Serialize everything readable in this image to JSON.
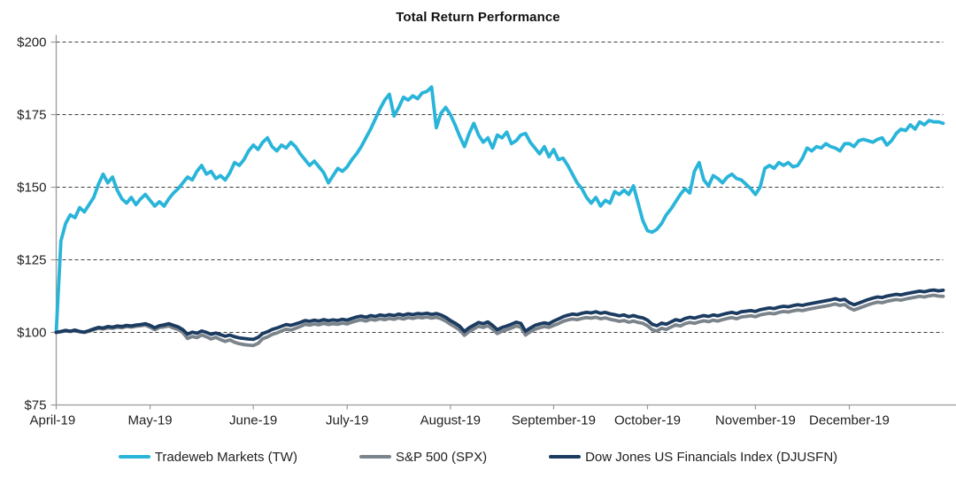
{
  "page": {
    "background": "#ffffff"
  },
  "chart_data": {
    "type": "line",
    "title": "Total Return Performance",
    "xlabel": "",
    "ylabel": "",
    "x_tick_labels": [
      "April-19",
      "May-19",
      "June-19",
      "July-19",
      "August-19",
      "September-19",
      "October-19",
      "November-19",
      "December-19"
    ],
    "x_tick_day_offsets": [
      0,
      20,
      42,
      62,
      84,
      106,
      126,
      149,
      169
    ],
    "y_axis": {
      "min": 75,
      "max": 200,
      "tick_values": [
        200,
        175,
        150,
        125,
        100,
        75
      ],
      "tick_labels": [
        "$200",
        "$175",
        "$150",
        "$125",
        "$100",
        "$75"
      ],
      "gridlines": "dashed-horizontal"
    },
    "legend_position": "bottom",
    "colors": {
      "grid": "#3f3f3f",
      "axis": "#999999",
      "text": "#1f1f1f"
    },
    "series": [
      {
        "key": "tw",
        "name": "Tradeweb Markets (TW)",
        "color": "#29B4D9",
        "values": [
          100,
          131.5,
          137.5,
          140.5,
          139.5,
          143,
          141.5,
          144,
          146.5,
          151,
          154.5,
          151.5,
          153.5,
          149,
          146,
          144.5,
          146.5,
          144,
          146,
          147.5,
          145.5,
          143.5,
          145,
          143.5,
          146,
          148,
          149.5,
          151.5,
          153.5,
          152.5,
          155.5,
          157.5,
          154.5,
          155.5,
          153,
          154,
          152.5,
          155,
          158.5,
          157.5,
          159.5,
          162.5,
          164.5,
          163,
          165.5,
          167,
          164,
          162.5,
          164.5,
          163.5,
          165.5,
          164,
          161.5,
          159.5,
          157.5,
          159,
          157,
          155,
          151.5,
          154,
          156.5,
          155.5,
          157,
          159.5,
          161.5,
          164,
          167,
          170,
          173.5,
          177,
          180,
          182,
          174.5,
          177.5,
          181,
          180,
          181.5,
          180.5,
          182.5,
          183,
          184.5,
          170.5,
          175.5,
          177.5,
          175,
          171.5,
          167.5,
          164,
          168.5,
          172,
          168,
          165.5,
          167,
          163.5,
          168,
          167,
          169,
          165,
          166,
          168,
          168.5,
          165.5,
          163.5,
          161.5,
          164,
          160.5,
          163,
          159.5,
          160,
          157.5,
          154.5,
          151.5,
          149.5,
          146.5,
          144.5,
          146.5,
          143.5,
          145.5,
          144.5,
          148.5,
          147.5,
          149,
          147.5,
          150.5,
          144.5,
          138.5,
          135,
          134.5,
          135.5,
          137.5,
          140.5,
          142.5,
          145,
          147.5,
          149.5,
          148,
          155.5,
          158.5,
          152.5,
          150.5,
          154,
          153,
          151.5,
          153.5,
          154.5,
          153,
          152.5,
          151,
          149.5,
          147.5,
          150,
          156.5,
          157.5,
          156.5,
          158.5,
          157.5,
          158.5,
          157,
          157.5,
          160,
          163.5,
          162.5,
          164,
          163.5,
          165,
          164,
          163.5,
          162.5,
          165,
          165,
          164,
          166,
          166.5,
          166,
          165.5,
          166.5,
          167,
          164.5,
          166,
          168.5,
          170,
          169.5,
          171.5,
          170,
          172.5,
          171.5,
          173,
          172.5,
          172.5,
          172
        ]
      },
      {
        "key": "spx",
        "name": "S&P 500 (SPX)",
        "color": "#7B838B",
        "values": [
          100,
          100.2,
          100.5,
          100.3,
          100.6,
          100.2,
          100,
          100.4,
          100.9,
          101.4,
          101.2,
          101.6,
          101.4,
          101.8,
          101.6,
          102,
          101.8,
          102.1,
          102.3,
          102.5,
          101.8,
          100.9,
          101.7,
          101.9,
          102.2,
          101.5,
          101,
          99.9,
          97.9,
          98.6,
          98.2,
          99.1,
          98.5,
          97.7,
          98.3,
          97.5,
          96.9,
          97.4,
          96.6,
          96.1,
          95.8,
          95.6,
          95.5,
          96.2,
          97.8,
          98.4,
          99.3,
          99.8,
          100.5,
          101.1,
          100.8,
          101.4,
          102,
          102.8,
          102.5,
          102.9,
          102.6,
          103.1,
          102.7,
          103,
          102.8,
          103.2,
          102.9,
          103.5,
          104,
          104.3,
          103.9,
          104.5,
          104.2,
          104.7,
          104.4,
          104.8,
          104.5,
          105,
          104.6,
          105.1,
          104.8,
          105.2,
          105,
          105.3,
          104.9,
          105.2,
          104.7,
          103.9,
          102.8,
          101.9,
          100.8,
          99,
          100.3,
          101.2,
          102.1,
          101.7,
          102.3,
          101.1,
          99.6,
          100.4,
          100.9,
          101.5,
          102.2,
          101.8,
          99.1,
          100.2,
          101.1,
          101.6,
          102,
          101.7,
          102.4,
          103,
          103.8,
          104.3,
          104.6,
          104.4,
          104.8,
          105.1,
          104.9,
          105.2,
          104.7,
          105,
          104.5,
          104.2,
          103.8,
          104.1,
          103.5,
          103.9,
          103.4,
          103.1,
          102.3,
          100.9,
          100.5,
          101.4,
          101,
          101.8,
          102.6,
          102.2,
          103,
          103.4,
          103.1,
          103.6,
          104,
          103.7,
          104.2,
          103.9,
          104.4,
          104.8,
          105.1,
          104.7,
          105.3,
          105.5,
          105.7,
          105.4,
          106,
          106.3,
          106.6,
          106.4,
          106.9,
          107.2,
          107,
          107.4,
          107.7,
          107.5,
          107.9,
          108.2,
          108.5,
          108.8,
          109.1,
          109.4,
          109.8,
          109.3,
          109.6,
          108.4,
          107.7,
          108.3,
          108.9,
          109.5,
          110,
          110.4,
          110.2,
          110.7,
          111,
          111.3,
          111.1,
          111.5,
          111.8,
          112.1,
          112.4,
          112.2,
          112.6,
          112.8,
          112.5,
          112.4
        ]
      },
      {
        "key": "djusfn",
        "name": "Dow Jones US Financials Index (DJUSFN)",
        "color": "#1B3B61",
        "values": [
          100,
          100.3,
          100.7,
          100.4,
          100.8,
          100.3,
          100.1,
          100.6,
          101.2,
          101.7,
          101.5,
          102,
          101.8,
          102.2,
          102,
          102.4,
          102.2,
          102.5,
          102.7,
          103,
          102.4,
          101.6,
          102.3,
          102.6,
          103,
          102.4,
          101.9,
          100.9,
          99.4,
          100.1,
          99.7,
          100.5,
          100,
          99.3,
          99.8,
          99.2,
          98.7,
          99.1,
          98.5,
          98.1,
          97.9,
          97.7,
          97.6,
          98.3,
          99.6,
          100.2,
          101,
          101.5,
          102.1,
          102.7,
          102.4,
          102.9,
          103.4,
          104.1,
          103.8,
          104.2,
          103.9,
          104.4,
          104,
          104.3,
          104.1,
          104.5,
          104.2,
          104.8,
          105.3,
          105.6,
          105.2,
          105.8,
          105.5,
          106,
          105.7,
          106.1,
          105.8,
          106.3,
          105.9,
          106.4,
          106.1,
          106.5,
          106.3,
          106.6,
          106.2,
          106.5,
          106,
          105.2,
          104.1,
          103.2,
          102.1,
          100.3,
          101.6,
          102.5,
          103.4,
          103,
          103.6,
          102.4,
          100.9,
          101.7,
          102.2,
          102.8,
          103.5,
          103.1,
          100.4,
          101.5,
          102.4,
          102.9,
          103.3,
          103,
          103.9,
          104.6,
          105.4,
          105.9,
          106.3,
          106.1,
          106.6,
          106.9,
          106.7,
          107.1,
          106.6,
          106.9,
          106.4,
          106.1,
          105.7,
          106,
          105.4,
          105.8,
          105.3,
          105,
          104.2,
          102.8,
          102.3,
          103.2,
          102.8,
          103.6,
          104.4,
          104,
          104.8,
          105.2,
          104.9,
          105.4,
          105.8,
          105.5,
          106,
          105.7,
          106.2,
          106.6,
          106.9,
          106.5,
          107.1,
          107.3,
          107.5,
          107.2,
          107.8,
          108.1,
          108.4,
          108.2,
          108.7,
          109,
          108.8,
          109.2,
          109.5,
          109.3,
          109.7,
          110,
          110.3,
          110.6,
          110.9,
          111.2,
          111.6,
          111.1,
          111.4,
          110.2,
          109.5,
          110.1,
          110.7,
          111.3,
          111.8,
          112.2,
          112,
          112.5,
          112.8,
          113.1,
          112.9,
          113.3,
          113.6,
          113.9,
          114.2,
          114,
          114.4,
          114.6,
          114.3,
          114.5
        ]
      }
    ]
  }
}
